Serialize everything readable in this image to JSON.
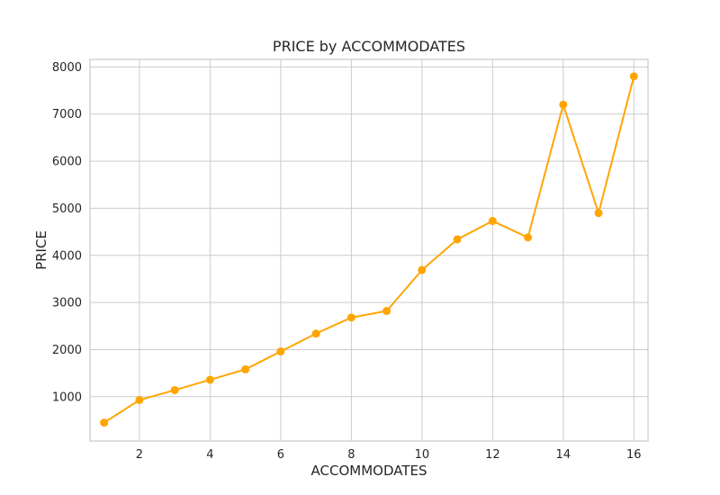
{
  "chart_data": {
    "type": "line",
    "title": "PRICE by ACCOMMODATES",
    "xlabel": "ACCOMMODATES",
    "ylabel": "PRICE",
    "xlim": [
      0.6,
      16.4
    ],
    "ylim": [
      60,
      8160
    ],
    "x_ticks": [
      2,
      4,
      6,
      8,
      10,
      12,
      14,
      16
    ],
    "y_ticks": [
      1000,
      2000,
      3000,
      4000,
      5000,
      6000,
      7000,
      8000
    ],
    "grid": true,
    "legend": "none",
    "series": [
      {
        "color": "#FFA500",
        "marker": "circle",
        "x": [
          1,
          2,
          3,
          4,
          5,
          6,
          7,
          8,
          9,
          10,
          11,
          12,
          13,
          14,
          15,
          16
        ],
        "y": [
          450,
          930,
          1140,
          1360,
          1580,
          1960,
          2340,
          2680,
          2820,
          3690,
          4340,
          4730,
          4380,
          7200,
          4900,
          7800
        ]
      }
    ]
  }
}
